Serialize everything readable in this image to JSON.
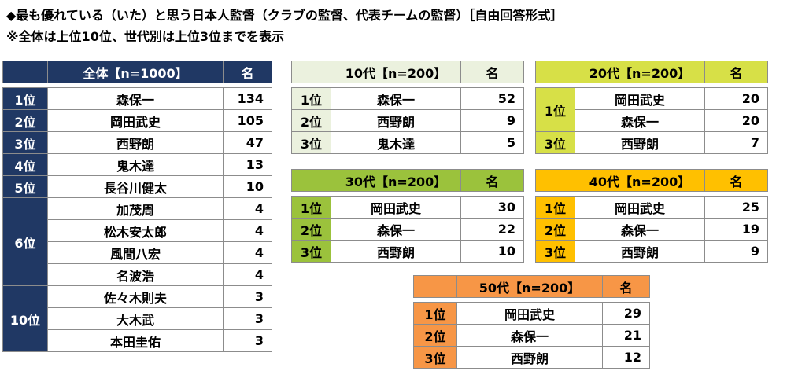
{
  "header": {
    "title": "◆最も優れている（いた）と思う日本人監督（クラブの監督、代表チームの監督）［自由回答形式］",
    "note": "※全体は上位10位、世代別は上位3位までを表示"
  },
  "tables": [
    {
      "label": "全体【n=1000】",
      "unit": "名",
      "groups": [
        {
          "rank": "1位",
          "entries": [
            {
              "name": "森保一",
              "count": 134
            }
          ]
        },
        {
          "rank": "2位",
          "entries": [
            {
              "name": "岡田武史",
              "count": 105
            }
          ]
        },
        {
          "rank": "3位",
          "entries": [
            {
              "name": "西野朗",
              "count": 47
            }
          ]
        },
        {
          "rank": "4位",
          "entries": [
            {
              "name": "鬼木達",
              "count": 13
            }
          ]
        },
        {
          "rank": "5位",
          "entries": [
            {
              "name": "長谷川健太",
              "count": 10
            }
          ]
        },
        {
          "rank": "6位",
          "entries": [
            {
              "name": "加茂周",
              "count": 4
            },
            {
              "name": "松木安太郎",
              "count": 4
            },
            {
              "name": "風間八宏",
              "count": 4
            },
            {
              "name": "名波浩",
              "count": 4
            }
          ]
        },
        {
          "rank": "10位",
          "entries": [
            {
              "name": "佐々木則夫",
              "count": 3
            },
            {
              "name": "大木武",
              "count": 3
            },
            {
              "name": "本田圭佑",
              "count": 3
            }
          ]
        }
      ]
    },
    {
      "label": "10代【n=200】",
      "unit": "名",
      "groups": [
        {
          "rank": "1位",
          "entries": [
            {
              "name": "森保一",
              "count": 52
            }
          ]
        },
        {
          "rank": "2位",
          "entries": [
            {
              "name": "西野朗",
              "count": 9
            }
          ]
        },
        {
          "rank": "3位",
          "entries": [
            {
              "name": "鬼木達",
              "count": 5
            }
          ]
        }
      ]
    },
    {
      "label": "20代【n=200】",
      "unit": "名",
      "groups": [
        {
          "rank": "1位",
          "entries": [
            {
              "name": "岡田武史",
              "count": 20
            },
            {
              "name": "森保一",
              "count": 20
            }
          ]
        },
        {
          "rank": "3位",
          "entries": [
            {
              "name": "西野朗",
              "count": 7
            }
          ]
        }
      ]
    },
    {
      "label": "30代【n=200】",
      "unit": "名",
      "groups": [
        {
          "rank": "1位",
          "entries": [
            {
              "name": "岡田武史",
              "count": 30
            }
          ]
        },
        {
          "rank": "2位",
          "entries": [
            {
              "name": "森保一",
              "count": 22
            }
          ]
        },
        {
          "rank": "3位",
          "entries": [
            {
              "name": "西野朗",
              "count": 10
            }
          ]
        }
      ]
    },
    {
      "label": "40代【n=200】",
      "unit": "名",
      "groups": [
        {
          "rank": "1位",
          "entries": [
            {
              "name": "岡田武史",
              "count": 25
            }
          ]
        },
        {
          "rank": "2位",
          "entries": [
            {
              "name": "森保一",
              "count": 19
            }
          ]
        },
        {
          "rank": "3位",
          "entries": [
            {
              "name": "西野朗",
              "count": 9
            }
          ]
        }
      ]
    },
    {
      "label": "50代【n=200】",
      "unit": "名",
      "groups": [
        {
          "rank": "1位",
          "entries": [
            {
              "name": "岡田武史",
              "count": 29
            }
          ]
        },
        {
          "rank": "2位",
          "entries": [
            {
              "name": "森保一",
              "count": 21
            }
          ]
        },
        {
          "rank": "3位",
          "entries": [
            {
              "name": "西野朗",
              "count": 12
            }
          ]
        }
      ]
    }
  ]
}
